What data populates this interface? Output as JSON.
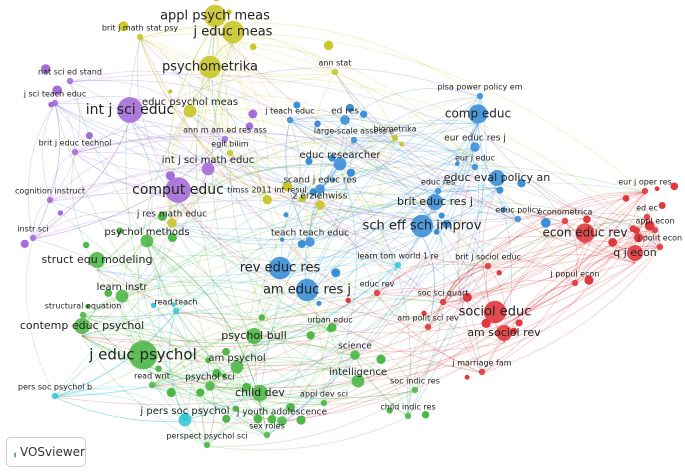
{
  "network": {
    "nodes": [
      {
        "label": "appl psych meas",
        "color": "#c9c52a"
      },
      {
        "label": "brit j math stat psy",
        "color": "#c9c52a"
      },
      {
        "label": "j educ meas",
        "color": "#c9c52a"
      },
      {
        "label": "psychometrika",
        "color": "#c9c52a"
      },
      {
        "label": "ann stat",
        "color": "#c9c52a"
      },
      {
        "label": "biometrika",
        "color": "#c9c52a"
      },
      {
        "label": "nat sci ed stand",
        "color": "#a46ed6"
      },
      {
        "label": "j sci teach educ",
        "color": "#a46ed6"
      },
      {
        "label": "educ psychol meas",
        "color": "#c9c52a"
      },
      {
        "label": "int j sci educ",
        "color": "#a46ed6"
      },
      {
        "label": "ann m am ed res ass",
        "color": "#a46ed6"
      },
      {
        "label": "egit bilim",
        "color": "#c9c52a"
      },
      {
        "label": "brit j educ technol",
        "color": "#a46ed6"
      },
      {
        "label": "int j sci math educ",
        "color": "#a46ed6"
      },
      {
        "label": "cognition instruct",
        "color": "#a46ed6"
      },
      {
        "label": "comput educ",
        "color": "#a46ed6"
      },
      {
        "label": "instr sci",
        "color": "#a46ed6"
      },
      {
        "label": "timss 2011 int resul",
        "color": "#c9c52a"
      },
      {
        "label": "pisa power policy em",
        "color": "#3b8fd6"
      },
      {
        "label": "j teach educ",
        "color": "#3b8fd6"
      },
      {
        "label": "ed res",
        "color": "#3b8fd6"
      },
      {
        "label": "comp educ",
        "color": "#3b8fd6"
      },
      {
        "label": "large-scale assess e",
        "color": "#3b8fd6"
      },
      {
        "label": "eur educ res j",
        "color": "#3b8fd6"
      },
      {
        "label": "educ researcher",
        "color": "#3b8fd6"
      },
      {
        "label": "eur j educ",
        "color": "#3b8fd6"
      },
      {
        "label": "scand j educ res",
        "color": "#3b8fd6"
      },
      {
        "label": "educ res",
        "color": "#3b8fd6"
      },
      {
        "label": "educ eval policy an",
        "color": "#3b8fd6"
      },
      {
        "label": "z erziehwiss",
        "color": "#c9c52a"
      },
      {
        "label": "brit educ res j",
        "color": "#3b8fd6"
      },
      {
        "label": "educ policy",
        "color": "#3b8fd6"
      },
      {
        "label": "j res math educ",
        "color": "#c9c52a"
      },
      {
        "label": "sch eff sch improv",
        "color": "#3b8fd6"
      },
      {
        "label": "teach teach educ",
        "color": "#3b8fd6"
      },
      {
        "label": "learn tom world 1 re",
        "color": "#3bc7d6"
      },
      {
        "label": "rev educ res",
        "color": "#3b8fd6"
      },
      {
        "label": "psychol methods",
        "color": "#4fb848"
      },
      {
        "label": "struct equ modeling",
        "color": "#4fb848"
      },
      {
        "label": "learn instr",
        "color": "#4fb848"
      },
      {
        "label": "read teach",
        "color": "#3bc7d6"
      },
      {
        "label": "structural equation",
        "color": "#4fb848"
      },
      {
        "label": "contemp educ psychol",
        "color": "#4fb848"
      },
      {
        "label": "am educ res j",
        "color": "#3b8fd6"
      },
      {
        "label": "urban educ",
        "color": "#4fb848"
      },
      {
        "label": "psychol bull",
        "color": "#4fb848"
      },
      {
        "label": "science",
        "color": "#4fb848"
      },
      {
        "label": "j educ psychol",
        "color": "#4fb848"
      },
      {
        "label": "am psychol",
        "color": "#4fb848"
      },
      {
        "label": "intelligence",
        "color": "#4fb848"
      },
      {
        "label": "read writ",
        "color": "#4fb848"
      },
      {
        "label": "psychol sci",
        "color": "#4fb848"
      },
      {
        "label": "pers soc psychol b",
        "color": "#3bc7d6"
      },
      {
        "label": "child dev",
        "color": "#4fb848"
      },
      {
        "label": "appl dev sci",
        "color": "#4fb848"
      },
      {
        "label": "j pers soc psychol",
        "color": "#3bc7d6"
      },
      {
        "label": "j youth adolescence",
        "color": "#4fb848"
      },
      {
        "label": "perspect psychol sci",
        "color": "#4fb848"
      },
      {
        "label": "sex roles",
        "color": "#4fb848"
      },
      {
        "label": "soc indic res",
        "color": "#4fb848"
      },
      {
        "label": "child indic res",
        "color": "#4fb848"
      },
      {
        "label": "eur j oper res",
        "color": "#e0383c"
      },
      {
        "label": "econometrica",
        "color": "#e0383c"
      },
      {
        "label": "ed ec",
        "color": "#e0383c"
      },
      {
        "label": "appl econ",
        "color": "#e0383c"
      },
      {
        "label": "econ educ rev",
        "color": "#e0383c"
      },
      {
        "label": "j polit econ",
        "color": "#e0383c"
      },
      {
        "label": "q j econ",
        "color": "#e0383c"
      },
      {
        "label": "brit j sociol educ",
        "color": "#e0383c"
      },
      {
        "label": "j popul econ",
        "color": "#e0383c"
      },
      {
        "label": "educ rev",
        "color": "#e0383c"
      },
      {
        "label": "soc sci quart",
        "color": "#e0383c"
      },
      {
        "label": "sociol educ",
        "color": "#e0383c"
      },
      {
        "label": "am polit sci rev",
        "color": "#e0383c"
      },
      {
        "label": "am sociol rev",
        "color": "#e0383c"
      },
      {
        "label": "j marriage fam",
        "color": "#e0383c"
      }
    ]
  },
  "logo": "VOSviewer"
}
